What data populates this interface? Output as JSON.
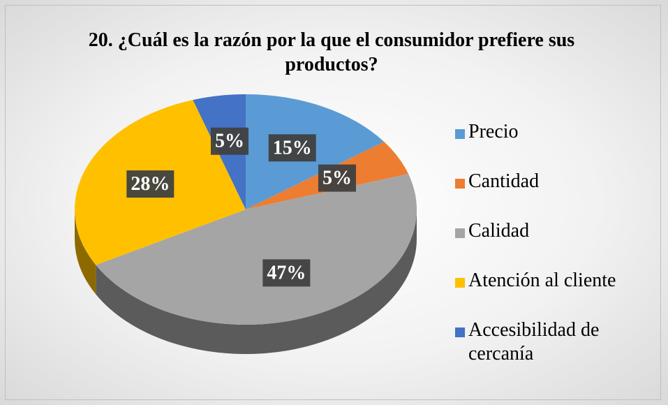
{
  "chart_data": {
    "type": "pie",
    "title": "20. ¿Cuál es la razón por la que el consumidor prefiere sus productos?",
    "categories": [
      "Precio",
      "Cantidad",
      "Calidad",
      "Atención al cliente",
      "Accesibilidad de cercanía"
    ],
    "values": [
      15,
      5,
      47,
      28,
      5
    ],
    "value_labels": [
      "15%",
      "5%",
      "47%",
      "28%",
      "5%"
    ],
    "colors": [
      "#5b9bd5",
      "#ed7d31",
      "#a5a5a5",
      "#ffc000",
      "#4472c4"
    ],
    "legend": "right"
  }
}
